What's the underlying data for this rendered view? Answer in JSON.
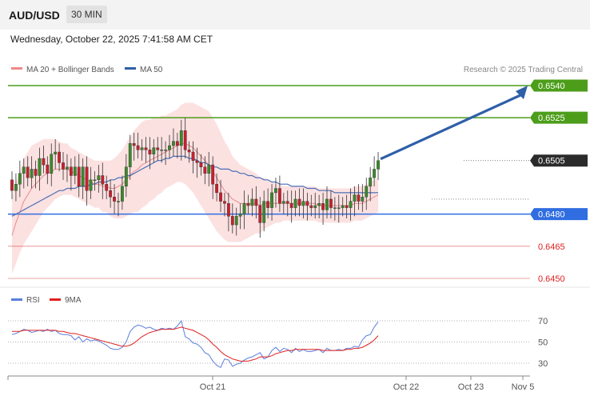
{
  "header": {
    "symbol": "AUD/USD",
    "timeframe": "30 MIN",
    "datetime": "Wednesday, October 22, 2025 7:41:58 AM CET"
  },
  "legend": {
    "ma20_label": "MA 20 + Bollinger Bands",
    "ma50_label": "MA 50",
    "copyright": "Research © 2025 Trading Central",
    "rsi_label": "RSI",
    "rsi_ma_label": "9MA"
  },
  "colors": {
    "green": "#4c9e1a",
    "blue_level": "#2f6de1",
    "red_level": "#dd2222",
    "candle_up": "#3a8a2a",
    "candle_down": "#c8202e",
    "ma20": "#e88a8a",
    "ma50": "#4a6fb5",
    "band_fill": "#fbdcdc",
    "arrow": "#2f5fa8",
    "rsi": "#5b7fdc",
    "rsi_ma": "#e02020"
  },
  "chart_data": [
    {
      "type": "candlestick",
      "title": "AUD/USD",
      "timeframe": "30 MIN",
      "ylim": [
        0.6443,
        0.6553
      ],
      "levels": [
        {
          "label": "0.6540",
          "value": 0.654,
          "kind": "resistance"
        },
        {
          "label": "0.6525",
          "value": 0.6525,
          "kind": "resistance"
        },
        {
          "label": "0.6505",
          "value": 0.6505,
          "kind": "last"
        },
        {
          "label": "0.6480",
          "value": 0.648,
          "kind": "support"
        },
        {
          "label": "0.6465",
          "value": 0.6465,
          "kind": "support"
        },
        {
          "label": "0.6450",
          "value": 0.645,
          "kind": "support"
        }
      ],
      "x_ticks": [
        "Oct 21",
        "Oct 22",
        "Oct 23",
        "Nov 5"
      ],
      "close": [
        0.6491,
        0.6494,
        0.6499,
        0.6502,
        0.6497,
        0.6501,
        0.6498,
        0.6506,
        0.6503,
        0.6499,
        0.6508,
        0.6509,
        0.6504,
        0.6501,
        0.6502,
        0.6498,
        0.6502,
        0.6493,
        0.6502,
        0.6491,
        0.6496,
        0.6496,
        0.6498,
        0.6494,
        0.6491,
        0.6488,
        0.6486,
        0.6486,
        0.6493,
        0.6502,
        0.6513,
        0.6512,
        0.651,
        0.6511,
        0.651,
        0.6508,
        0.6511,
        0.651,
        0.651,
        0.651,
        0.6512,
        0.6514,
        0.6512,
        0.6519,
        0.651,
        0.6509,
        0.6505,
        0.6504,
        0.6502,
        0.6499,
        0.6503,
        0.6494,
        0.649,
        0.6486,
        0.6485,
        0.6479,
        0.6475,
        0.6479,
        0.648,
        0.6485,
        0.6484,
        0.6487,
        0.6484,
        0.6476,
        0.6486,
        0.6483,
        0.649,
        0.6492,
        0.6485,
        0.6486,
        0.6485,
        0.6483,
        0.6487,
        0.6484,
        0.6486,
        0.6484,
        0.6483,
        0.6484,
        0.6485,
        0.6482,
        0.6487,
        0.6483,
        0.6483,
        0.6483,
        0.6484,
        0.6483,
        0.6486,
        0.6489,
        0.6486,
        0.6488,
        0.6493,
        0.6497,
        0.6501,
        0.6505
      ],
      "open": [
        0.6496,
        0.6491,
        0.6494,
        0.6499,
        0.6502,
        0.6497,
        0.6501,
        0.6498,
        0.6506,
        0.6503,
        0.6499,
        0.6508,
        0.6509,
        0.6504,
        0.6501,
        0.6502,
        0.6498,
        0.6502,
        0.6493,
        0.6502,
        0.6491,
        0.6496,
        0.6496,
        0.6498,
        0.6494,
        0.6491,
        0.6488,
        0.6486,
        0.6486,
        0.6493,
        0.6502,
        0.6513,
        0.6512,
        0.651,
        0.6511,
        0.651,
        0.6508,
        0.6511,
        0.651,
        0.651,
        0.651,
        0.6512,
        0.6514,
        0.6512,
        0.6519,
        0.651,
        0.6509,
        0.6505,
        0.6504,
        0.6502,
        0.6499,
        0.6503,
        0.6494,
        0.649,
        0.6486,
        0.6485,
        0.6479,
        0.6475,
        0.6479,
        0.648,
        0.6485,
        0.6484,
        0.6487,
        0.6484,
        0.6476,
        0.6486,
        0.6483,
        0.649,
        0.6492,
        0.6485,
        0.6486,
        0.6485,
        0.6483,
        0.6487,
        0.6484,
        0.6486,
        0.6484,
        0.6483,
        0.6484,
        0.6485,
        0.6482,
        0.6487,
        0.6483,
        0.6483,
        0.6483,
        0.6484,
        0.6483,
        0.6486,
        0.6489,
        0.6486,
        0.6488,
        0.6493,
        0.6497,
        0.6501
      ],
      "ma20": [
        0.647,
        0.6476,
        0.6481,
        0.6486,
        0.6489,
        0.6492,
        0.6494,
        0.6496,
        0.6498,
        0.6499,
        0.65,
        0.6501,
        0.6501,
        0.6501,
        0.6501,
        0.65,
        0.6499,
        0.6498,
        0.6497,
        0.6496,
        0.6495,
        0.6494,
        0.6494,
        0.6493,
        0.6493,
        0.6492,
        0.6492,
        0.6493,
        0.6494,
        0.6496,
        0.6498,
        0.65,
        0.6501,
        0.6503,
        0.6504,
        0.6505,
        0.6506,
        0.6507,
        0.6508,
        0.6509,
        0.651,
        0.6511,
        0.6512,
        0.6513,
        0.6513,
        0.6512,
        0.6511,
        0.6509,
        0.6507,
        0.6505,
        0.6503,
        0.65,
        0.6497,
        0.6494,
        0.6491,
        0.6489,
        0.6487,
        0.6486,
        0.6485,
        0.6485,
        0.6485,
        0.6485,
        0.6485,
        0.6484,
        0.6485,
        0.6485,
        0.6485,
        0.6485,
        0.6485,
        0.6485,
        0.6485,
        0.6485,
        0.6485,
        0.6485,
        0.6485,
        0.6485,
        0.6485,
        0.6485,
        0.6484,
        0.6484,
        0.6484,
        0.6484,
        0.6484,
        0.6484,
        0.6484,
        0.6484,
        0.6484,
        0.6485,
        0.6485,
        0.6485,
        0.6486,
        0.6487,
        0.6488,
        0.6489
      ],
      "ma50": [
        0.6479,
        0.648,
        0.6481,
        0.6482,
        0.6483,
        0.6484,
        0.6485,
        0.6486,
        0.6487,
        0.6488,
        0.6489,
        0.649,
        0.6491,
        0.6491,
        0.6492,
        0.6492,
        0.6492,
        0.6493,
        0.6493,
        0.6493,
        0.6494,
        0.6494,
        0.6495,
        0.6495,
        0.6495,
        0.6496,
        0.6496,
        0.6497,
        0.6497,
        0.6498,
        0.6498,
        0.6499,
        0.65,
        0.6501,
        0.6502,
        0.6503,
        0.6504,
        0.6505,
        0.6505,
        0.6506,
        0.6506,
        0.6507,
        0.6507,
        0.6507,
        0.6507,
        0.6506,
        0.6506,
        0.6505,
        0.6504,
        0.6504,
        0.6503,
        0.6502,
        0.6502,
        0.6501,
        0.6501,
        0.6501,
        0.65,
        0.65,
        0.6499,
        0.6499,
        0.6498,
        0.6498,
        0.6497,
        0.6497,
        0.6496,
        0.6496,
        0.6495,
        0.6495,
        0.6494,
        0.6494,
        0.6494,
        0.6493,
        0.6493,
        0.6493,
        0.6493,
        0.6492,
        0.6492,
        0.6492,
        0.6491,
        0.6491,
        0.6491,
        0.6491,
        0.649,
        0.649,
        0.649,
        0.649,
        0.649,
        0.649,
        0.649,
        0.649,
        0.649,
        0.649,
        0.649,
        0.649
      ],
      "bb_width": [
        0.0018,
        0.0019,
        0.0019,
        0.002,
        0.002,
        0.002,
        0.0019,
        0.0018,
        0.0017,
        0.0016,
        0.0015,
        0.0014,
        0.0013,
        0.0012,
        0.0012,
        0.0011,
        0.0011,
        0.0011,
        0.0011,
        0.0011,
        0.0011,
        0.0011,
        0.0011,
        0.0012,
        0.0012,
        0.0013,
        0.0014,
        0.0015,
        0.0016,
        0.0017,
        0.0018,
        0.0019,
        0.002,
        0.002,
        0.002,
        0.0019,
        0.0019,
        0.0018,
        0.0018,
        0.0017,
        0.0017,
        0.0017,
        0.0017,
        0.0018,
        0.0019,
        0.002,
        0.0021,
        0.0022,
        0.0023,
        0.0024,
        0.0025,
        0.0025,
        0.0025,
        0.0024,
        0.0023,
        0.0022,
        0.002,
        0.0019,
        0.0018,
        0.0017,
        0.0016,
        0.0015,
        0.0014,
        0.0013,
        0.0012,
        0.0011,
        0.001,
        0.0009,
        0.0009,
        0.0008,
        0.0008,
        0.0008,
        0.0008,
        0.0008,
        0.0008,
        0.0008,
        0.0008,
        0.0008,
        0.0008,
        0.0008,
        0.0008,
        0.0008,
        0.0008,
        0.0008,
        0.0008,
        0.0008,
        0.0008,
        0.0008,
        0.0008,
        0.0008,
        0.0008,
        0.0008,
        0.0008,
        0.0008
      ],
      "forecast_target": 0.654
    },
    {
      "type": "line",
      "title": "RSI",
      "ylim": [
        20,
        80
      ],
      "y_ticks": [
        70,
        50,
        30
      ],
      "series": [
        {
          "name": "RSI",
          "values": [
            57,
            58,
            60,
            62,
            61,
            59,
            60,
            61,
            60,
            62,
            60,
            61,
            58,
            57,
            57,
            56,
            52,
            55,
            50,
            53,
            51,
            52,
            51,
            49,
            47,
            44,
            43,
            43,
            45,
            50,
            60,
            64,
            66,
            65,
            63,
            64,
            62,
            61,
            63,
            62,
            63,
            62,
            65,
            70,
            55,
            53,
            49,
            48,
            45,
            40,
            38,
            32,
            28,
            26,
            34,
            33,
            27,
            29,
            30,
            33,
            35,
            36,
            38,
            40,
            34,
            36,
            42,
            45,
            41,
            44,
            43,
            40,
            44,
            41,
            43,
            41,
            41,
            42,
            43,
            40,
            44,
            42,
            42,
            43,
            42,
            44,
            44,
            46,
            45,
            52,
            56,
            57,
            64,
            69
          ]
        },
        {
          "name": "9MA",
          "values": [
            60,
            60,
            60,
            61,
            61,
            61,
            61,
            61,
            61,
            61,
            61,
            61,
            60,
            60,
            59,
            58,
            58,
            57,
            56,
            55,
            54,
            53,
            52,
            51,
            50,
            49,
            48,
            47,
            46,
            46,
            47,
            49,
            52,
            55,
            57,
            59,
            60,
            61,
            62,
            62,
            62,
            62,
            63,
            64,
            63,
            62,
            61,
            59,
            57,
            55,
            52,
            48,
            45,
            41,
            38,
            36,
            34,
            33,
            32,
            32,
            32,
            33,
            34,
            36,
            36,
            36,
            37,
            39,
            40,
            41,
            42,
            42,
            43,
            43,
            43,
            43,
            43,
            43,
            43,
            42,
            42,
            42,
            42,
            42,
            42,
            43,
            43,
            44,
            44,
            45,
            47,
            49,
            52,
            56
          ]
        }
      ]
    }
  ]
}
